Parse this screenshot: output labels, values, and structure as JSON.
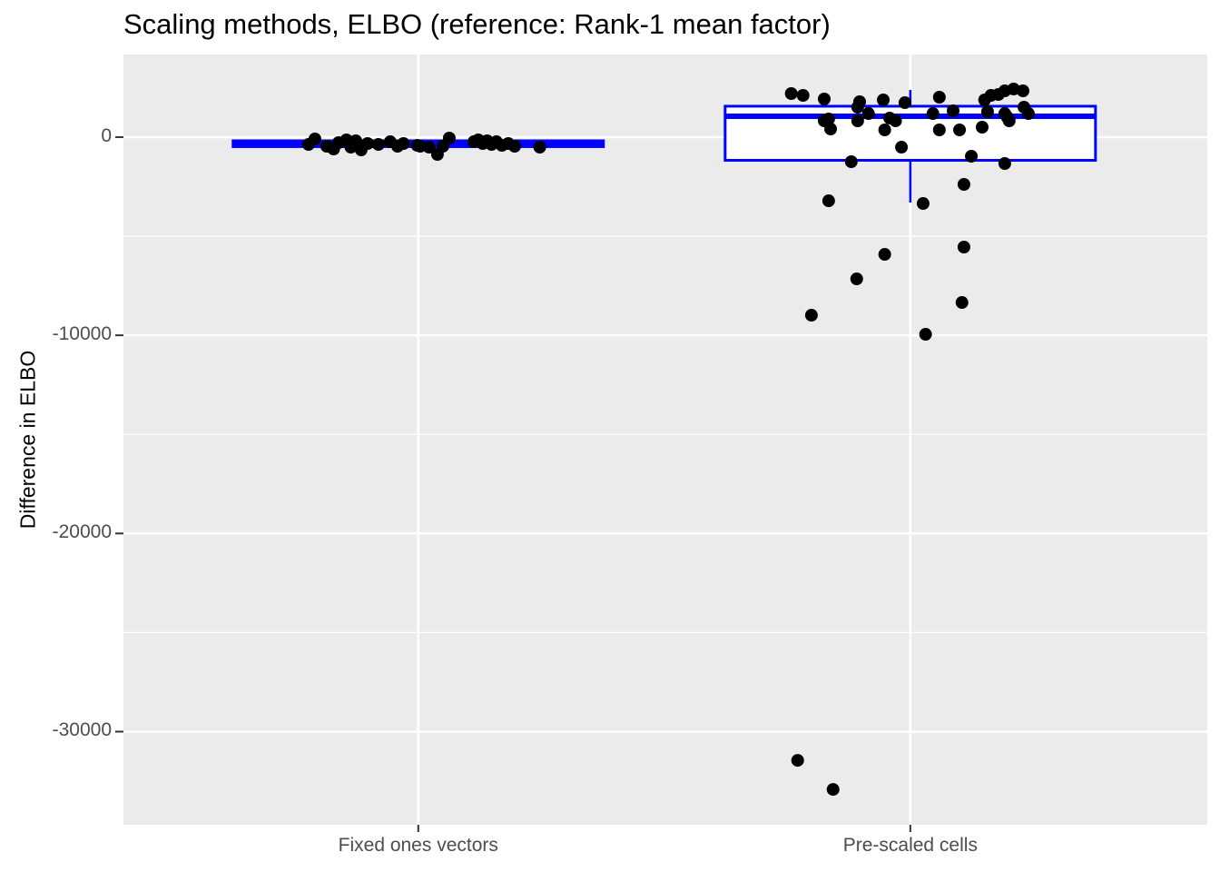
{
  "chart_data": {
    "type": "boxplot",
    "title": "Scaling methods, ELBO (reference: Rank-1 mean factor)",
    "ylabel": "Difference in ELBO",
    "categories": [
      "Fixed ones vectors",
      "Pre-scaled cells"
    ],
    "y_ticks": [
      0,
      -10000,
      -20000,
      -30000
    ],
    "y_tick_labels": [
      "0",
      "-10000",
      "-20000",
      "-30000"
    ],
    "y_minor_ticks": [
      -5000,
      -15000,
      -25000
    ],
    "ylim": [
      -34700,
      4170
    ],
    "grid": "horizontal major+minor white lines, vertical major white line at each category",
    "legend_position": "none",
    "colors": {
      "box_stroke": "#0000FF",
      "box_fill": "#FFFFFF",
      "points": "#000000",
      "panel_background": "#EBEBEB",
      "gridline": "#FFFFFF",
      "axis_tick": "#333333",
      "tick_text": "#4D4D4D",
      "title_text": "#000000"
    },
    "boxes": [
      {
        "category": "Fixed ones vectors",
        "whisker_low": -480,
        "q1": -480,
        "median": -320,
        "q3": -185,
        "whisker_high": -185
      },
      {
        "category": "Pre-scaled cells",
        "whisker_low": -3300,
        "q1": -1170,
        "median": 1055,
        "q3": 1560,
        "whisker_high": 2380
      }
    ],
    "points_note": "each point is [category_index, jitter_offset_in_category_units, value]",
    "points": [
      [
        0,
        -0.223,
        -368
      ],
      [
        0,
        -0.21,
        -93
      ],
      [
        0,
        -0.186,
        -460
      ],
      [
        0,
        -0.172,
        -597
      ],
      [
        0,
        -0.162,
        -276
      ],
      [
        0,
        -0.146,
        -139
      ],
      [
        0,
        -0.137,
        -506
      ],
      [
        0,
        -0.127,
        -185
      ],
      [
        0,
        -0.116,
        -643
      ],
      [
        0,
        -0.103,
        -322
      ],
      [
        0,
        -0.081,
        -368
      ],
      [
        0,
        -0.057,
        -231
      ],
      [
        0,
        -0.042,
        -460
      ],
      [
        0,
        -0.03,
        -322
      ],
      [
        0,
        -0.002,
        -414
      ],
      [
        0,
        0.004,
        -460
      ],
      [
        0,
        0.022,
        -506
      ],
      [
        0,
        0.039,
        -872
      ],
      [
        0,
        0.05,
        -460
      ],
      [
        0,
        0.063,
        -47
      ],
      [
        0,
        0.113,
        -231
      ],
      [
        0,
        0.122,
        -139
      ],
      [
        0,
        0.131,
        -322
      ],
      [
        0,
        0.14,
        -185
      ],
      [
        0,
        0.149,
        -368
      ],
      [
        0,
        0.159,
        -231
      ],
      [
        0,
        0.17,
        -414
      ],
      [
        0,
        0.183,
        -322
      ],
      [
        0,
        0.196,
        -460
      ],
      [
        0,
        0.247,
        -506
      ],
      [
        1,
        -0.242,
        2199
      ],
      [
        1,
        -0.218,
        2107
      ],
      [
        1,
        -0.175,
        1924
      ],
      [
        1,
        -0.103,
        1786
      ],
      [
        1,
        -0.055,
        1878
      ],
      [
        1,
        -0.011,
        1740
      ],
      [
        1,
        -0.107,
        1511
      ],
      [
        1,
        -0.085,
        1190
      ],
      [
        1,
        -0.175,
        824
      ],
      [
        1,
        -0.166,
        915
      ],
      [
        1,
        -0.107,
        824
      ],
      [
        1,
        -0.042,
        961
      ],
      [
        1,
        -0.03,
        824
      ],
      [
        1,
        -0.162,
        411
      ],
      [
        1,
        -0.052,
        365
      ],
      [
        1,
        -0.018,
        -506
      ],
      [
        1,
        -0.12,
        -1239
      ],
      [
        1,
        0.059,
        2016
      ],
      [
        1,
        0.151,
        1878
      ],
      [
        1,
        0.164,
        2107
      ],
      [
        1,
        0.179,
        2153
      ],
      [
        1,
        0.192,
        2336
      ],
      [
        1,
        0.21,
        2428
      ],
      [
        1,
        0.229,
        2336
      ],
      [
        1,
        0.046,
        1190
      ],
      [
        1,
        0.087,
        1328
      ],
      [
        1,
        0.157,
        1282
      ],
      [
        1,
        0.192,
        1190
      ],
      [
        1,
        0.197,
        1007
      ],
      [
        1,
        0.231,
        1511
      ],
      [
        1,
        0.24,
        1190
      ],
      [
        1,
        0.059,
        365
      ],
      [
        1,
        0.1,
        365
      ],
      [
        1,
        0.146,
        503
      ],
      [
        1,
        0.201,
        824
      ],
      [
        1,
        0.124,
        -964
      ],
      [
        1,
        0.192,
        -1331
      ],
      [
        1,
        -0.166,
        -3211
      ],
      [
        1,
        0.026,
        -3348
      ],
      [
        1,
        0.109,
        -2385
      ],
      [
        1,
        -0.052,
        -5915
      ],
      [
        1,
        -0.109,
        -7153
      ],
      [
        1,
        0.109,
        -5548
      ],
      [
        1,
        -0.201,
        -8987
      ],
      [
        1,
        0.105,
        -8345
      ],
      [
        1,
        0.031,
        -9950
      ],
      [
        1,
        -0.229,
        -31450
      ],
      [
        1,
        -0.157,
        -32917
      ]
    ]
  }
}
